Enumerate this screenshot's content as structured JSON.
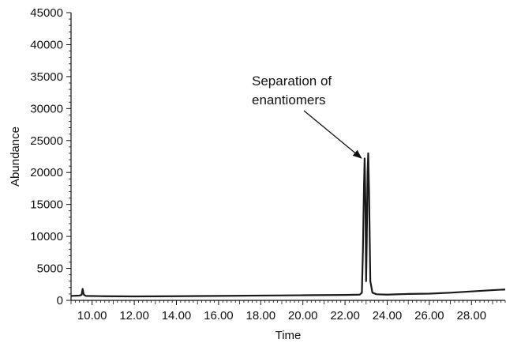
{
  "chart_data": {
    "type": "line",
    "title": "",
    "xlabel": "Time",
    "ylabel": "Abundance",
    "xlim": [
      9.0,
      29.6
    ],
    "ylim": [
      0,
      45000
    ],
    "grid": false,
    "x_ticks": [
      "10.00",
      "12.00",
      "14.00",
      "16.00",
      "18.00",
      "20.00",
      "22.00",
      "24.00",
      "26.00",
      "28.00"
    ],
    "y_ticks": [
      "0",
      "5000",
      "10000",
      "15000",
      "20000",
      "25000",
      "30000",
      "35000",
      "40000",
      "45000"
    ],
    "series": [
      {
        "color": "#1a1a1a",
        "points": [
          [
            9.0,
            700
          ],
          [
            9.4,
            750
          ],
          [
            9.5,
            850
          ],
          [
            9.55,
            1800
          ],
          [
            9.6,
            900
          ],
          [
            9.7,
            700
          ],
          [
            10.5,
            650
          ],
          [
            12.0,
            620
          ],
          [
            14.0,
            650
          ],
          [
            16.0,
            700
          ],
          [
            18.0,
            750
          ],
          [
            20.0,
            800
          ],
          [
            22.0,
            850
          ],
          [
            22.7,
            900
          ],
          [
            22.8,
            1200
          ],
          [
            22.85,
            8000
          ],
          [
            22.9,
            18000
          ],
          [
            22.93,
            22200
          ],
          [
            22.97,
            15000
          ],
          [
            23.0,
            3000
          ],
          [
            23.03,
            9000
          ],
          [
            23.07,
            20000
          ],
          [
            23.1,
            23000
          ],
          [
            23.14,
            17000
          ],
          [
            23.2,
            3000
          ],
          [
            23.3,
            1200
          ],
          [
            23.5,
            950
          ],
          [
            24.0,
            900
          ],
          [
            25.0,
            1000
          ],
          [
            26.0,
            1050
          ],
          [
            27.0,
            1200
          ],
          [
            28.0,
            1400
          ],
          [
            29.0,
            1600
          ],
          [
            29.6,
            1700
          ]
        ]
      }
    ],
    "annotations": [
      {
        "lines": [
          "Separation of",
          "enantiomers"
        ],
        "arrow_to": [
          22.85,
          22500
        ]
      }
    ]
  }
}
